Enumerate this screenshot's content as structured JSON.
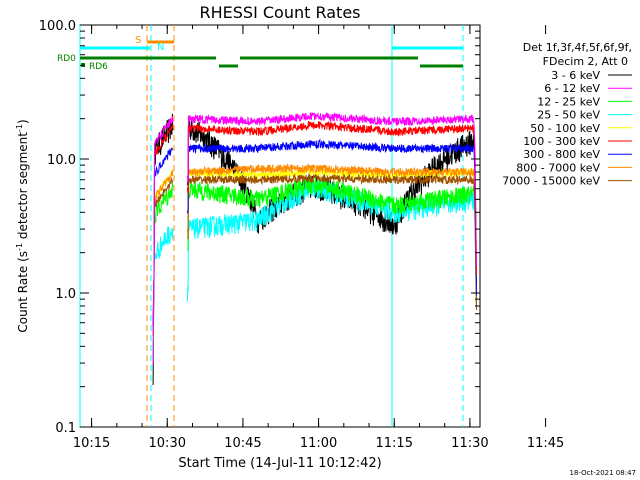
{
  "chart_data": {
    "type": "line",
    "title": "RHESSI Count Rates",
    "xlabel": "Start Time (14-Jul-11 10:12:42)",
    "ylabel_main": "Count Rate (s",
    "ylabel_sup": "-1",
    "ylabel_mid": " detector segment",
    "ylabel_end": ")",
    "y_scale": "log",
    "ylim": [
      0.1,
      100
    ],
    "xlim_min": [
      612.7,
      692
    ],
    "y_ticks": [
      {
        "value": 0.1,
        "label": "0.1"
      },
      {
        "value": 1,
        "label": "1.0"
      },
      {
        "value": 10,
        "label": "10.0"
      },
      {
        "value": 100,
        "label": "100.0"
      }
    ],
    "x_ticks": [
      {
        "value": 615,
        "label": "10:15"
      },
      {
        "value": 630,
        "label": "10:30"
      },
      {
        "value": 645,
        "label": "10:45"
      },
      {
        "value": 660,
        "label": "11:00"
      },
      {
        "value": 675,
        "label": "11:15"
      },
      {
        "value": 690,
        "label": "11:30"
      },
      {
        "value": 705,
        "label": "11:45"
      }
    ],
    "legend_header": [
      "Det 1f,3f,4f,5f,6f,9f,",
      "FDecim 2, Att 0"
    ],
    "series": [
      {
        "name": "3 - 6 keV",
        "color": "#000000",
        "values": [
          18,
          3.5,
          6.5,
          3.2,
          14
        ]
      },
      {
        "name": "6 - 12 keV",
        "color": "#ff00ff",
        "values": [
          20,
          19,
          21,
          19,
          20
        ]
      },
      {
        "name": "12 - 25 keV",
        "color": "#00ff00",
        "values": [
          6,
          5,
          6.5,
          4.5,
          5.5
        ]
      },
      {
        "name": "25 - 50 keV",
        "color": "#00ffff",
        "values": [
          3,
          3.5,
          6.2,
          4,
          5
        ]
      },
      {
        "name": "50 - 100 keV",
        "color": "#ffff00",
        "values": [
          8,
          7.5,
          8,
          7.5,
          8
        ]
      },
      {
        "name": "100 - 300 keV",
        "color": "#ff0000",
        "values": [
          17,
          16,
          18,
          16,
          17
        ]
      },
      {
        "name": "300 - 800 keV",
        "color": "#0000ff",
        "values": [
          12,
          12,
          13,
          12,
          12
        ]
      },
      {
        "name": "800 - 7000 keV",
        "color": "#ff8c00",
        "values": [
          8,
          8.5,
          8.5,
          8,
          8
        ]
      },
      {
        "name": "7000 - 15000 keV",
        "color": "#a05000",
        "values": [
          7,
          7,
          7.2,
          7,
          7
        ]
      }
    ],
    "annotations": {
      "saa_label": "S",
      "night_label": "N",
      "rd0_label": "RD0",
      "rd6_label": "RD6"
    },
    "footer_date": "18-Oct-2021 08:47"
  }
}
